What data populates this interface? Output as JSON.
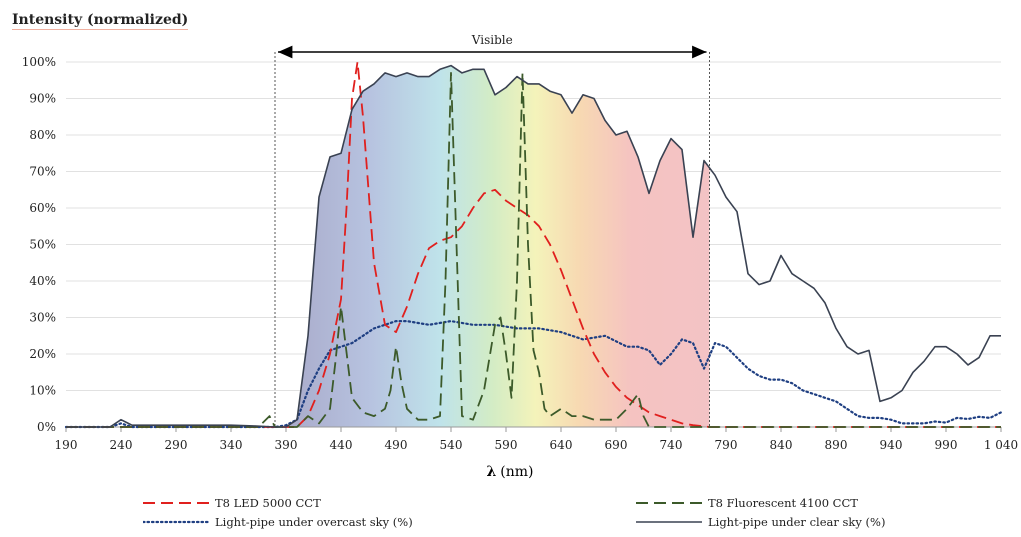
{
  "chart_data": {
    "type": "line",
    "ylabel": "Intensity (normalized)",
    "xlabel_symbol": "λ",
    "xlabel_unit": "(nm)",
    "xlim": [
      190,
      1040
    ],
    "ylim": [
      0,
      100
    ],
    "x_ticks": [
      190,
      240,
      290,
      340,
      390,
      440,
      490,
      540,
      590,
      640,
      690,
      740,
      790,
      840,
      890,
      940,
      990,
      1040
    ],
    "x_tick_labels": [
      "190",
      "240",
      "290",
      "340",
      "390",
      "440",
      "490",
      "540",
      "590",
      "640",
      "690",
      "740",
      "790",
      "840",
      "890",
      "940",
      "990",
      "1 040"
    ],
    "y_ticks": [
      0,
      10,
      20,
      30,
      40,
      50,
      60,
      70,
      80,
      90,
      100
    ],
    "y_tick_labels": [
      "0%",
      "10%",
      "20%",
      "30%",
      "40%",
      "50%",
      "60%",
      "70%",
      "80%",
      "90%",
      "100%"
    ],
    "grid": true,
    "visible_band": {
      "label": "Visible",
      "start": 380,
      "end": 775
    },
    "series": [
      {
        "name": "T8 LED 5000 CCT",
        "color": "#e0201e",
        "dash": "dashed",
        "x": [
          190,
          350,
          380,
          390,
          400,
          410,
          420,
          430,
          440,
          445,
          450,
          455,
          460,
          470,
          480,
          490,
          500,
          510,
          520,
          530,
          540,
          550,
          560,
          570,
          580,
          590,
          600,
          610,
          620,
          630,
          640,
          650,
          660,
          670,
          680,
          690,
          700,
          710,
          720,
          730,
          740,
          750,
          760,
          775,
          790,
          1040
        ],
        "y": [
          0,
          0,
          0,
          0,
          0,
          3,
          10,
          20,
          35,
          60,
          90,
          100,
          85,
          45,
          28,
          26,
          33,
          42,
          49,
          51,
          52,
          55,
          60,
          64,
          65,
          62,
          60,
          58,
          55,
          50,
          43,
          35,
          27,
          20,
          15,
          11,
          8,
          6,
          4,
          3,
          2,
          1,
          0.5,
          0,
          0,
          0
        ]
      },
      {
        "name": "T8 Fluorescent 4100 CCT",
        "color": "#3c5a2a",
        "dash": "dashed",
        "x": [
          190,
          350,
          365,
          375,
          380,
          390,
          400,
          410,
          420,
          430,
          435,
          440,
          450,
          460,
          470,
          480,
          485,
          490,
          495,
          500,
          510,
          520,
          530,
          535,
          540,
          545,
          550,
          560,
          570,
          580,
          585,
          590,
          595,
          600,
          605,
          610,
          615,
          620,
          625,
          630,
          640,
          650,
          660,
          670,
          690,
          700,
          710,
          715,
          720,
          1040
        ],
        "y": [
          0,
          0,
          0,
          3,
          0,
          0,
          0,
          3,
          1,
          5,
          18,
          33,
          8,
          4,
          3,
          5,
          10,
          22,
          12,
          5,
          2,
          2,
          3,
          40,
          97,
          50,
          3,
          2,
          10,
          28,
          30,
          20,
          8,
          40,
          97,
          50,
          21,
          15,
          5,
          3,
          5,
          3,
          3,
          2,
          2,
          5,
          9,
          3,
          0,
          0
        ]
      },
      {
        "name": "Light-pipe under overcast sky (%)",
        "color": "#1f3f82",
        "dash": "dotted",
        "x": [
          190,
          230,
          240,
          250,
          280,
          340,
          360,
          380,
          390,
          400,
          410,
          420,
          430,
          440,
          450,
          460,
          470,
          480,
          490,
          500,
          520,
          540,
          560,
          580,
          600,
          620,
          640,
          660,
          680,
          700,
          710,
          720,
          730,
          740,
          750,
          760,
          770,
          780,
          790,
          800,
          810,
          820,
          830,
          840,
          850,
          860,
          870,
          880,
          890,
          900,
          910,
          920,
          930,
          940,
          950,
          960,
          970,
          980,
          990,
          1000,
          1010,
          1020,
          1030,
          1040
        ],
        "y": [
          0,
          0,
          1,
          0,
          0,
          0,
          0,
          0,
          0.5,
          2,
          10,
          16,
          21,
          22,
          23,
          25,
          27,
          28,
          29,
          29,
          28,
          29,
          28,
          28,
          27,
          27,
          26,
          24,
          25,
          22,
          22,
          21,
          17,
          20,
          24,
          23,
          16,
          23,
          22,
          19,
          16,
          14,
          13,
          13,
          12,
          10,
          9,
          8,
          7,
          5,
          3,
          2.5,
          2.5,
          2,
          1,
          1,
          1,
          1.5,
          1.2,
          2.5,
          2.2,
          2.8,
          2.5,
          4
        ]
      },
      {
        "name": "Light-pipe under clear sky (%)",
        "color": "#3a4252",
        "dash": "solid",
        "x": [
          190,
          230,
          240,
          250,
          260,
          280,
          300,
          340,
          360,
          380,
          390,
          400,
          410,
          420,
          430,
          440,
          450,
          460,
          470,
          480,
          490,
          500,
          510,
          520,
          530,
          540,
          550,
          560,
          570,
          580,
          590,
          600,
          610,
          620,
          630,
          640,
          650,
          660,
          670,
          680,
          690,
          700,
          710,
          720,
          730,
          740,
          750,
          760,
          770,
          780,
          790,
          800,
          810,
          820,
          830,
          840,
          850,
          860,
          870,
          880,
          890,
          900,
          910,
          920,
          930,
          940,
          950,
          960,
          970,
          980,
          990,
          1000,
          1010,
          1020,
          1030,
          1040
        ],
        "y": [
          0,
          0,
          2,
          0.5,
          0.5,
          0.5,
          0.5,
          0.5,
          0.3,
          0,
          0,
          2,
          25,
          63,
          74,
          75,
          87,
          92,
          94,
          97,
          96,
          97,
          96,
          96,
          98,
          99,
          97,
          98,
          98,
          91,
          93,
          96,
          94,
          94,
          92,
          91,
          86,
          91,
          90,
          84,
          80,
          81,
          74,
          64,
          73,
          79,
          76,
          52,
          73,
          69,
          63,
          59,
          42,
          39,
          40,
          47,
          42,
          40,
          38,
          34,
          27,
          22,
          20,
          21,
          7,
          8,
          10,
          15,
          18,
          22,
          22,
          20,
          17,
          19,
          25,
          25
        ]
      }
    ],
    "legend_position": "bottom"
  }
}
